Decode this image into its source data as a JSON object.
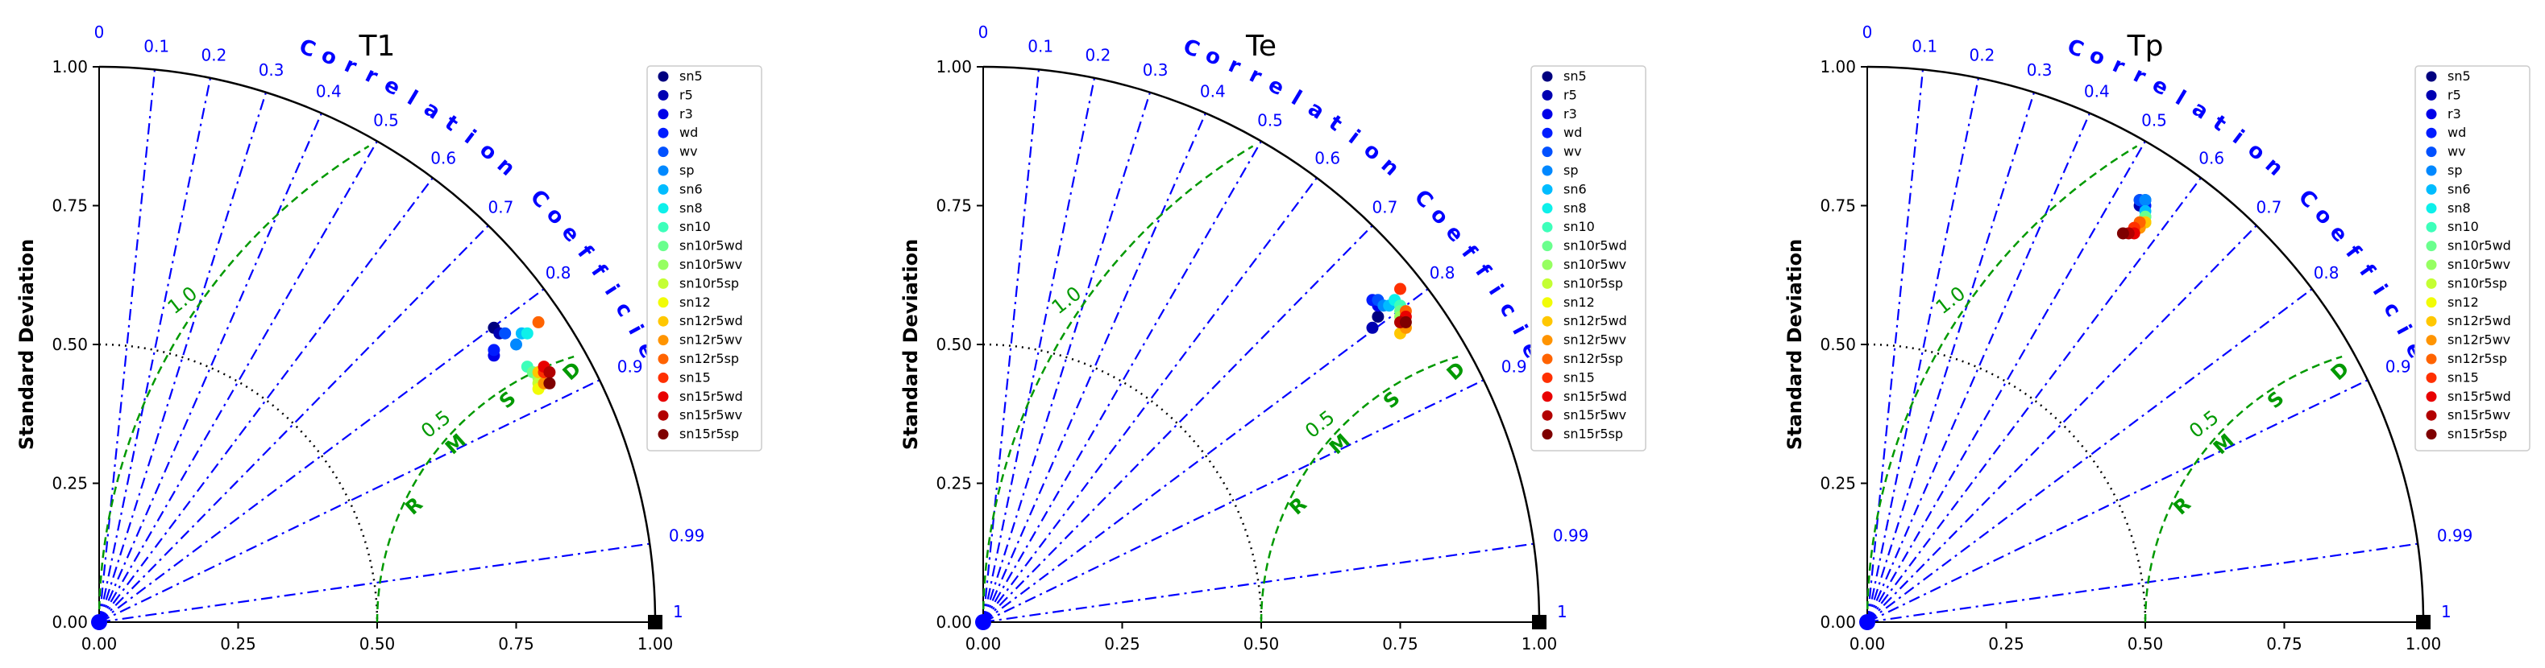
{
  "chart_data": {
    "type": "scatter",
    "subtype": "taylor-diagram",
    "ylabel": "Standard Deviation",
    "corr_axis_label": "Correlation Coefficient",
    "rmsd_axis_label": "RMSD",
    "std_ticks": [
      "0.00",
      "0.25",
      "0.50",
      "0.75",
      "1.00"
    ],
    "std_max": 1.0,
    "corr_ticks": [
      "0",
      "0.1",
      "0.2",
      "0.3",
      "0.4",
      "0.5",
      "0.6",
      "0.7",
      "0.8",
      "0.9",
      "0.99",
      "1"
    ],
    "rmsd_contours": [
      "0.5",
      "1.0"
    ],
    "ref_std": 1.0,
    "colors": {
      "corr_lines": "#0000ff",
      "rmsd": "#009900",
      "std_circle": "#000000",
      "ref_marker": "#000000"
    },
    "legend_labels": [
      "sn5",
      "r5",
      "r3",
      "wd",
      "wv",
      "sp",
      "sn6",
      "sn8",
      "sn10",
      "sn10r5wd",
      "sn10r5wv",
      "sn10r5sp",
      "sn12",
      "sn12r5wd",
      "sn12r5wv",
      "sn12r5sp",
      "sn15",
      "sn15r5wd",
      "sn15r5wv",
      "sn15r5sp"
    ],
    "legend_colors": [
      "#00007f",
      "#0000b2",
      "#0000e8",
      "#001cff",
      "#0050ff",
      "#0088ff",
      "#00bcff",
      "#0df0ea",
      "#3dffba",
      "#6aff8d",
      "#96ff61",
      "#c4ff33",
      "#f1fc06",
      "#ffc700",
      "#ff9400",
      "#ff6300",
      "#ff3000",
      "#e80000",
      "#b20000",
      "#7f0000"
    ],
    "panels": [
      {
        "title": "T1",
        "points": [
          {
            "x": 0.71,
            "y": 0.53
          },
          {
            "x": 0.72,
            "y": 0.52
          },
          {
            "x": 0.71,
            "y": 0.48
          },
          {
            "x": 0.71,
            "y": 0.49
          },
          {
            "x": 0.73,
            "y": 0.52
          },
          {
            "x": 0.75,
            "y": 0.5
          },
          {
            "x": 0.76,
            "y": 0.52
          },
          {
            "x": 0.77,
            "y": 0.52
          },
          {
            "x": 0.77,
            "y": 0.46
          },
          {
            "x": 0.78,
            "y": 0.45
          },
          {
            "x": 0.79,
            "y": 0.44
          },
          {
            "x": 0.79,
            "y": 0.43
          },
          {
            "x": 0.79,
            "y": 0.42
          },
          {
            "x": 0.79,
            "y": 0.45
          },
          {
            "x": 0.8,
            "y": 0.43
          },
          {
            "x": 0.79,
            "y": 0.54
          },
          {
            "x": 0.8,
            "y": 0.45
          },
          {
            "x": 0.8,
            "y": 0.46
          },
          {
            "x": 0.81,
            "y": 0.45
          },
          {
            "x": 0.81,
            "y": 0.43
          }
        ]
      },
      {
        "title": "Te",
        "points": [
          {
            "x": 0.71,
            "y": 0.55
          },
          {
            "x": 0.7,
            "y": 0.53
          },
          {
            "x": 0.71,
            "y": 0.57
          },
          {
            "x": 0.7,
            "y": 0.58
          },
          {
            "x": 0.71,
            "y": 0.58
          },
          {
            "x": 0.72,
            "y": 0.57
          },
          {
            "x": 0.73,
            "y": 0.57
          },
          {
            "x": 0.74,
            "y": 0.58
          },
          {
            "x": 0.75,
            "y": 0.57
          },
          {
            "x": 0.75,
            "y": 0.56
          },
          {
            "x": 0.75,
            "y": 0.55
          },
          {
            "x": 0.75,
            "y": 0.54
          },
          {
            "x": 0.76,
            "y": 0.53
          },
          {
            "x": 0.75,
            "y": 0.52
          },
          {
            "x": 0.76,
            "y": 0.53
          },
          {
            "x": 0.76,
            "y": 0.56
          },
          {
            "x": 0.75,
            "y": 0.6
          },
          {
            "x": 0.76,
            "y": 0.55
          },
          {
            "x": 0.75,
            "y": 0.54
          },
          {
            "x": 0.76,
            "y": 0.54
          }
        ]
      },
      {
        "title": "Tp",
        "points": [
          {
            "x": 0.49,
            "y": 0.76
          },
          {
            "x": 0.49,
            "y": 0.75
          },
          {
            "x": 0.5,
            "y": 0.76
          },
          {
            "x": 0.5,
            "y": 0.75
          },
          {
            "x": 0.49,
            "y": 0.76
          },
          {
            "x": 0.5,
            "y": 0.76
          },
          {
            "x": 0.5,
            "y": 0.74
          },
          {
            "x": 0.5,
            "y": 0.73
          },
          {
            "x": 0.5,
            "y": 0.72
          },
          {
            "x": 0.5,
            "y": 0.73
          },
          {
            "x": 0.5,
            "y": 0.72
          },
          {
            "x": 0.49,
            "y": 0.72
          },
          {
            "x": 0.5,
            "y": 0.72
          },
          {
            "x": 0.5,
            "y": 0.72
          },
          {
            "x": 0.49,
            "y": 0.71
          },
          {
            "x": 0.49,
            "y": 0.72
          },
          {
            "x": 0.48,
            "y": 0.71
          },
          {
            "x": 0.48,
            "y": 0.7
          },
          {
            "x": 0.47,
            "y": 0.7
          },
          {
            "x": 0.46,
            "y": 0.7
          }
        ]
      }
    ]
  }
}
